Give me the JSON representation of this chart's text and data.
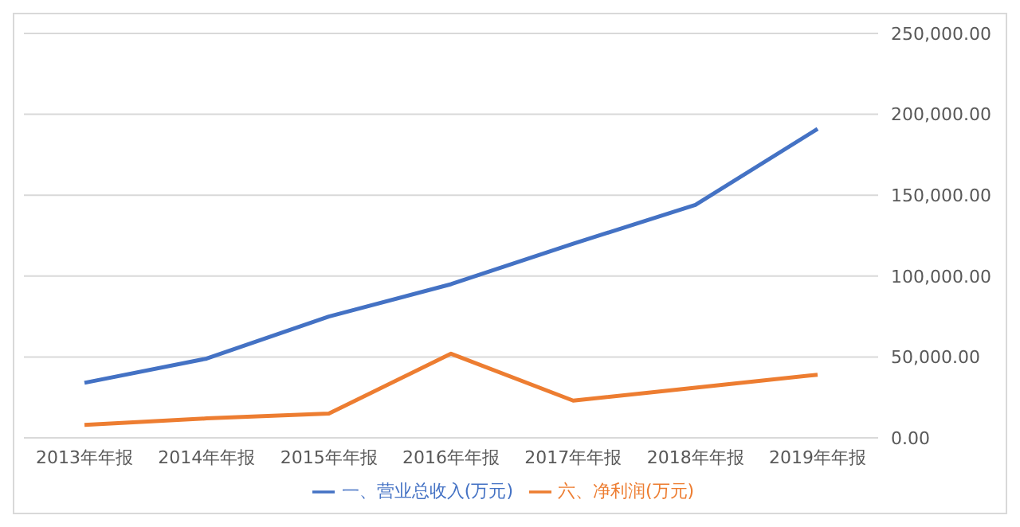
{
  "chart_data": {
    "type": "line",
    "categories": [
      "2013年年报",
      "2014年年报",
      "2015年年报",
      "2016年年报",
      "2017年年报",
      "2018年年报",
      "2019年年报"
    ],
    "series": [
      {
        "name": "一、营业总收入(万元)",
        "color": "#4472c4",
        "values": [
          34000,
          49000,
          75000,
          95000,
          120000,
          144000,
          191000
        ]
      },
      {
        "name": "六、净利润(万元)",
        "color": "#ed7d31",
        "values": [
          8000,
          12000,
          15000,
          52000,
          23000,
          31000,
          39000
        ]
      }
    ],
    "ylim": [
      0,
      250000
    ],
    "yticks": [
      {
        "value": 0,
        "label": "0.00"
      },
      {
        "value": 50000,
        "label": "50,000.00"
      },
      {
        "value": 100000,
        "label": "100,000.00"
      },
      {
        "value": 150000,
        "label": "150,000.00"
      },
      {
        "value": 200000,
        "label": "200,000.00"
      },
      {
        "value": 250000,
        "label": "250,000.00"
      }
    ],
    "grid": "y",
    "legend": "bottom",
    "marker": "none",
    "line_style": "solid"
  }
}
